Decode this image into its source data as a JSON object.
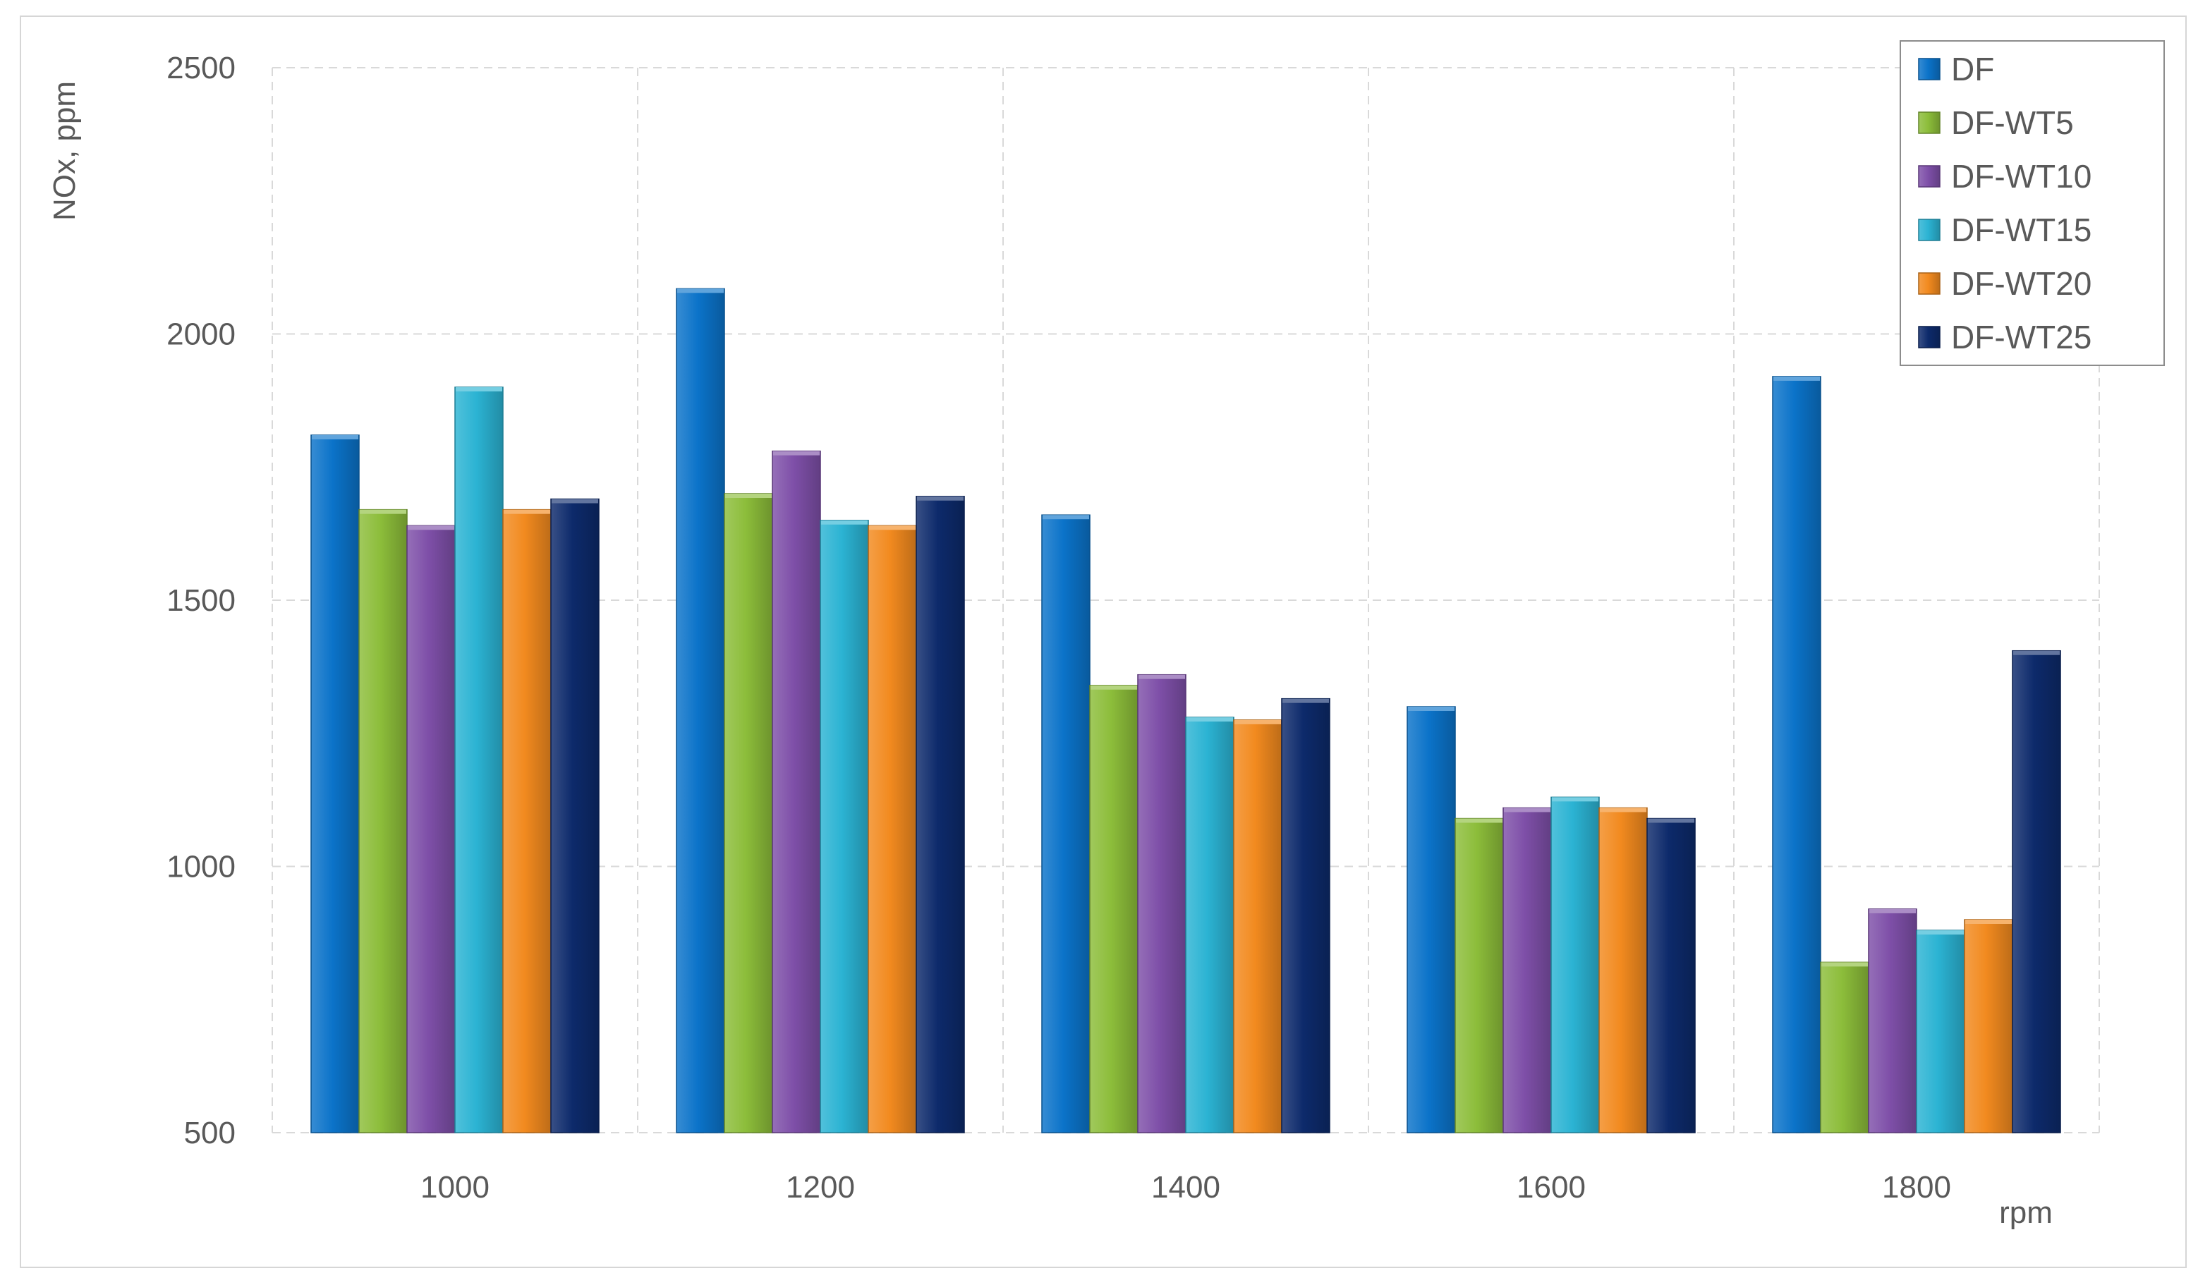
{
  "chart_data": {
    "type": "bar",
    "title": "",
    "xlabel": "rpm",
    "ylabel": "NOx, ppm",
    "ylim": [
      500,
      2500
    ],
    "yticks": [
      500,
      1000,
      1500,
      2000,
      2500
    ],
    "grid": true,
    "legend_position": "top-right",
    "categories": [
      "1000",
      "1200",
      "1400",
      "1600",
      "1800"
    ],
    "series": [
      {
        "name": "DF",
        "color": "#0b73c9",
        "values": [
          1810,
          2085,
          1660,
          1300,
          1920
        ]
      },
      {
        "name": "DF-WT5",
        "color": "#8cbd3a",
        "values": [
          1670,
          1700,
          1340,
          1090,
          820
        ]
      },
      {
        "name": "DF-WT10",
        "color": "#7e4fa8",
        "values": [
          1640,
          1780,
          1360,
          1110,
          920
        ]
      },
      {
        "name": "DF-WT15",
        "color": "#2bb3d3",
        "values": [
          1900,
          1650,
          1280,
          1130,
          880
        ]
      },
      {
        "name": "DF-WT20",
        "color": "#f28a1f",
        "values": [
          1670,
          1640,
          1275,
          1110,
          900
        ]
      },
      {
        "name": "DF-WT25",
        "color": "#0d2a6b",
        "values": [
          1690,
          1695,
          1315,
          1090,
          1405
        ]
      }
    ]
  }
}
